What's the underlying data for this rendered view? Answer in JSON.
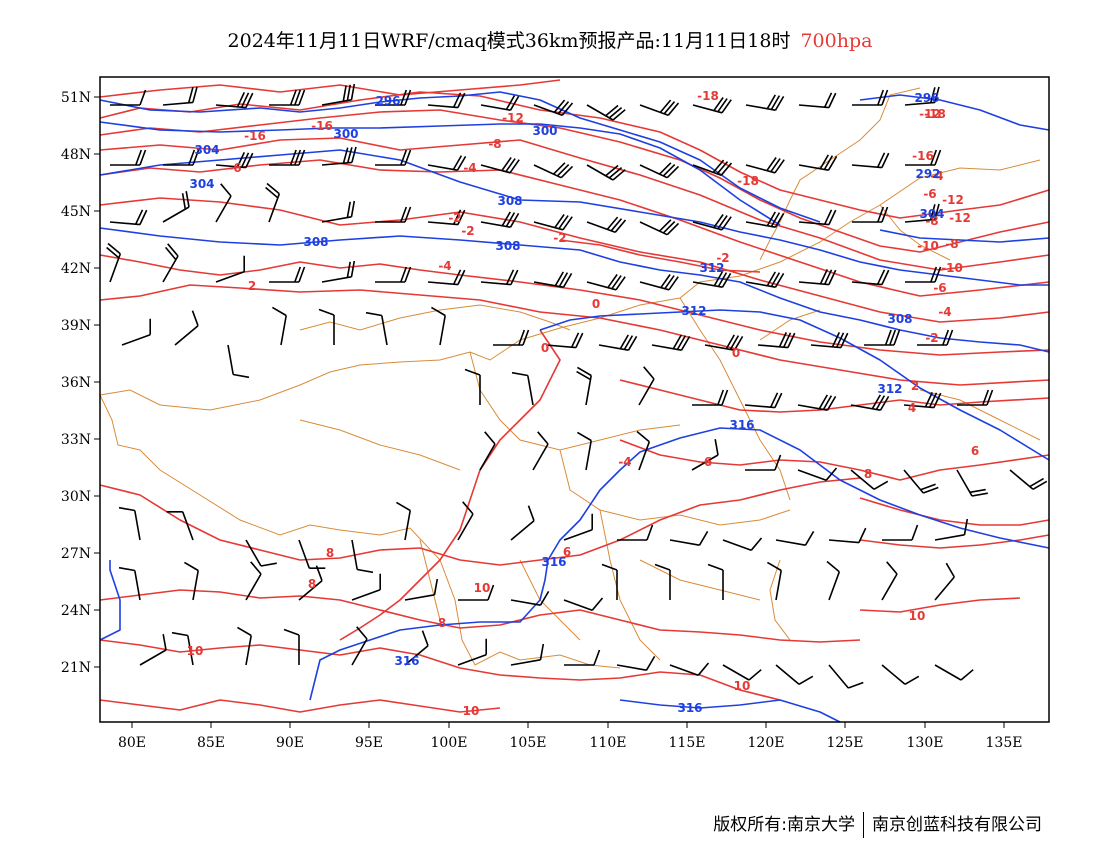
{
  "header": {
    "title": "2024年11月11日WRF/cmaq模式36km预报产品:11月11日18时",
    "level": "700hpa"
  },
  "map": {
    "lon_range": [
      78,
      138
    ],
    "lat_range": [
      18,
      52
    ],
    "lon_ticks": [
      "80E",
      "85E",
      "90E",
      "95E",
      "100E",
      "105E",
      "110E",
      "115E",
      "120E",
      "125E",
      "130E",
      "135E"
    ],
    "lat_ticks": [
      "51N",
      "48N",
      "45N",
      "42N",
      "39N",
      "36N",
      "33N",
      "30N",
      "27N",
      "24N",
      "21N"
    ],
    "temperature_isotherm_labels": [
      "-18",
      "-16",
      "-12",
      "-12",
      "-16",
      "-18",
      "-8",
      "-6",
      "-4",
      "-2",
      "-2",
      "-2",
      "-4",
      "0",
      "0",
      "0",
      "2",
      "2",
      "4",
      "6",
      "6",
      "6",
      "8",
      "8",
      "8",
      "8",
      "10",
      "10",
      "10",
      "10",
      "10",
      "-6",
      "-8",
      "-10",
      "-12",
      "-4",
      "-2",
      "-16",
      "-18",
      "-12",
      "-10",
      "-8",
      "-6",
      "-4",
      "-2",
      "-4"
    ],
    "height_contour_labels": [
      "296",
      "300",
      "300",
      "304",
      "304",
      "308",
      "308",
      "308",
      "312",
      "312",
      "308",
      "312",
      "316",
      "316",
      "316",
      "296",
      "292",
      "304",
      "316"
    ],
    "colors": {
      "temperature_contour": "#e53935",
      "height_contour": "#1e40e0",
      "boundaries": "#d98c3a",
      "wind_barbs": "#000000"
    }
  },
  "footer": {
    "copyright_left": "版权所有:南京大学",
    "copyright_right": "南京创蓝科技有限公司"
  }
}
